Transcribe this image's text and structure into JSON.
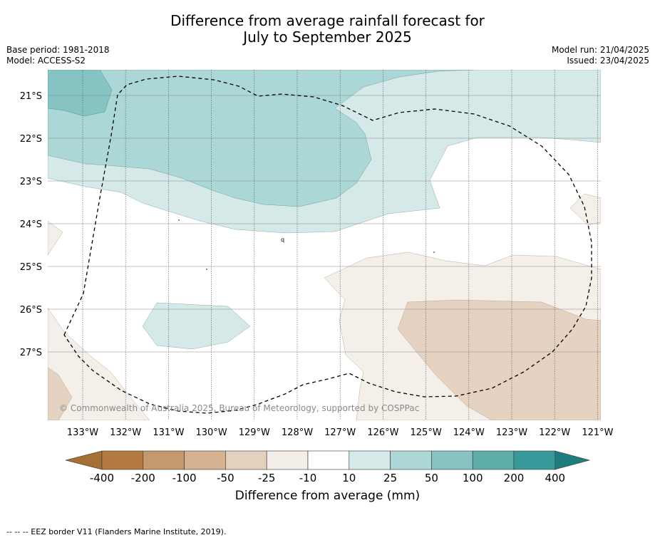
{
  "header": {
    "title_line1": "Difference from average rainfall forecast for",
    "title_line2": "July to September 2025",
    "base_period": "Base period: 1981-2018",
    "model": "Model: ACCESS-S2",
    "model_run": "Model run: 21/04/2025",
    "issued": "Issued: 23/04/2025"
  },
  "map": {
    "lat_labels": [
      "21°S",
      "22°S",
      "23°S",
      "24°S",
      "25°S",
      "26°S",
      "27°S"
    ],
    "lon_labels": [
      "133°W",
      "132°W",
      "131°W",
      "130°W",
      "129°W",
      "128°W",
      "127°W",
      "126°W",
      "125°W",
      "124°W",
      "123°W",
      "122°W",
      "121°W"
    ],
    "copyright": "© Commonwealth of Australia 2025, Bureau of Meteorology, supported by COSPPac",
    "colors": {
      "pos_10_25": "#d4e9e8",
      "pos_25_50": "#acd7d7",
      "pos_50_100": "#86c3c3",
      "neg_10_25": "#f5efea",
      "neg_25_50": "#e5d2c0"
    }
  },
  "colorbar": {
    "ticks": [
      "-400",
      "-200",
      "-100",
      "-50",
      "-25",
      "-10",
      "10",
      "25",
      "50",
      "100",
      "200",
      "400"
    ],
    "colors": [
      "#a67034",
      "#b47a40",
      "#c49a6c",
      "#d5b292",
      "#e3d0bd",
      "#f4eee9",
      "#ffffff",
      "#d5eae9",
      "#acd7d6",
      "#86c3c2",
      "#5eaeab",
      "#38999a",
      "#1f7d7d"
    ],
    "label": "Difference from average (mm)"
  },
  "footnote": "--  --  -- EEZ border V11 (Flanders Marine Institute, 2019)."
}
